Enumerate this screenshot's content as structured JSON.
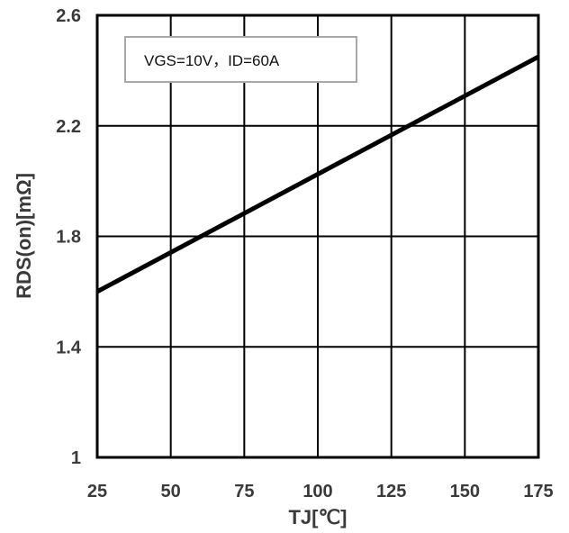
{
  "chart_data": {
    "type": "line",
    "title": "",
    "xlabel": "TJ[℃]",
    "ylabel": "RDS(on)[mΩ]",
    "xlim": [
      25,
      175
    ],
    "ylim": [
      1,
      2.6
    ],
    "xticks": [
      25,
      50,
      75,
      100,
      125,
      150,
      175
    ],
    "yticks": [
      1,
      1.4,
      1.8,
      2.2,
      2.6
    ],
    "xtick_labels": [
      "25",
      "50",
      "75",
      "100",
      "125",
      "150",
      "175"
    ],
    "ytick_labels": [
      "1",
      "1.4",
      "1.8",
      "2.2",
      "2.6"
    ],
    "grid": true,
    "annotation": "VGS=10V，ID=60A",
    "annotation_placement": "top-left",
    "series": [
      {
        "x": [
          25,
          175
        ],
        "y": [
          1.6,
          2.45
        ],
        "color": "#000000"
      }
    ]
  }
}
